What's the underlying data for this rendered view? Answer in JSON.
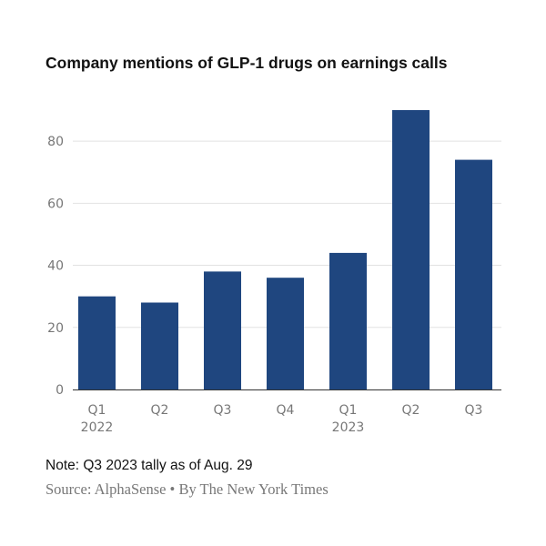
{
  "chart_data": {
    "type": "bar",
    "title": "Company mentions of GLP-1 drugs on earnings calls",
    "categories": [
      "Q1",
      "Q2",
      "Q3",
      "Q4",
      "Q1",
      "Q2",
      "Q3"
    ],
    "year_labels": [
      "2022",
      "",
      "",
      "",
      "2023",
      "",
      ""
    ],
    "values": [
      30,
      28,
      38,
      36,
      44,
      90,
      74
    ],
    "ylim": [
      0,
      90
    ],
    "yticks": [
      0,
      20,
      40,
      60,
      80
    ],
    "grid": true,
    "bar_color": "#1f467f"
  },
  "note": "Note: Q3 2023 tally as of Aug. 29",
  "source": "Source: AlphaSense • By The New York Times"
}
